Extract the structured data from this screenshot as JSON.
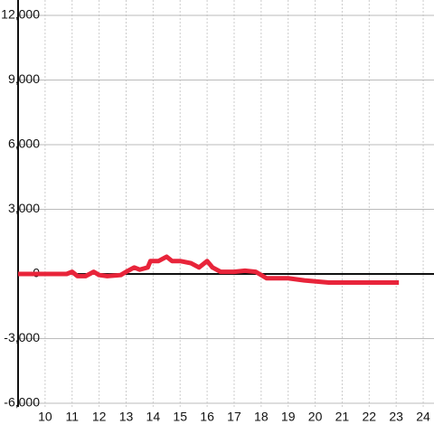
{
  "chart_data": {
    "type": "line",
    "x": [
      9.0,
      10.8,
      11.0,
      11.2,
      11.5,
      11.8,
      12.0,
      12.3,
      12.8,
      13.0,
      13.3,
      13.5,
      13.8,
      13.9,
      14.2,
      14.5,
      14.7,
      15.0,
      15.4,
      15.7,
      16.0,
      16.2,
      16.5,
      17.0,
      17.4,
      17.8,
      18.2,
      19.0,
      19.6,
      20.5,
      21.7,
      23.1
    ],
    "series": [
      {
        "color": "#e8243a",
        "values": [
          0,
          0,
          100,
          -100,
          -100,
          100,
          -50,
          -100,
          -50,
          100,
          300,
          200,
          300,
          600,
          600,
          800,
          600,
          600,
          500,
          300,
          600,
          300,
          100,
          100,
          150,
          100,
          -200,
          -200,
          -300,
          -400,
          -400,
          -400
        ]
      }
    ],
    "xlim": [
      9,
      24.4
    ],
    "ylim": [
      -6000,
      12000
    ],
    "xticks": [
      10,
      11,
      12,
      13,
      14,
      15,
      16,
      17,
      18,
      19,
      20,
      21,
      22,
      23,
      24
    ],
    "yticks": [
      {
        "value": 12000,
        "label": "12,000"
      },
      {
        "value": 9000,
        "label": "9,000"
      },
      {
        "value": 6000,
        "label": "6,000"
      },
      {
        "value": 3000,
        "label": "3,000"
      },
      0,
      {
        "value": -3000,
        "label": "-3,000"
      },
      {
        "value": -6000,
        "label": "-6,000"
      }
    ],
    "grid": true
  }
}
